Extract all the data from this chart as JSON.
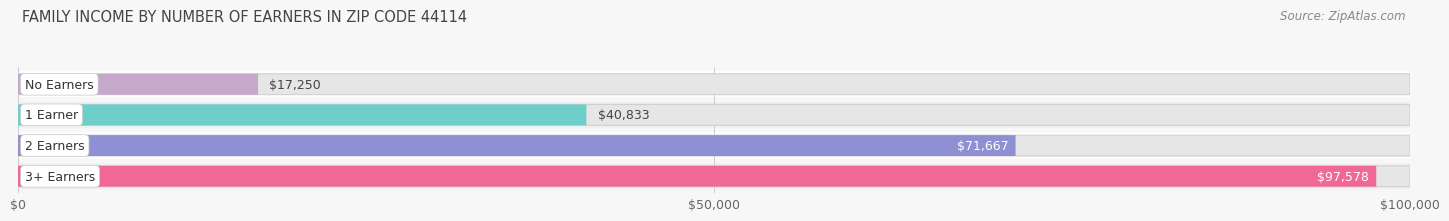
{
  "title": "FAMILY INCOME BY NUMBER OF EARNERS IN ZIP CODE 44114",
  "source": "Source: ZipAtlas.com",
  "categories": [
    "No Earners",
    "1 Earner",
    "2 Earners",
    "3+ Earners"
  ],
  "values": [
    17250,
    40833,
    71667,
    97578
  ],
  "bar_colors": [
    "#c5a8cc",
    "#6dceca",
    "#8f8fd4",
    "#f06898"
  ],
  "bar_bg_color": "#e6e6e6",
  "bar_border_color": "#d0d0d0",
  "label_bg_colors": [
    "#c5a8cc",
    "#6dceca",
    "#8f8fd4",
    "#f06898"
  ],
  "value_label_inside": [
    false,
    false,
    true,
    true
  ],
  "xlim": [
    0,
    100000
  ],
  "xticks": [
    0,
    50000,
    100000
  ],
  "xticklabels": [
    "$0",
    "$50,000",
    "$100,000"
  ],
  "title_fontsize": 10.5,
  "source_fontsize": 8.5,
  "bar_label_fontsize": 9,
  "value_label_fontsize": 9,
  "axis_label_fontsize": 9,
  "background_color": "#f7f7f7",
  "row_bg_colors": [
    "#ffffff",
    "#f0f0f0",
    "#ffffff",
    "#f0f0f0"
  ]
}
